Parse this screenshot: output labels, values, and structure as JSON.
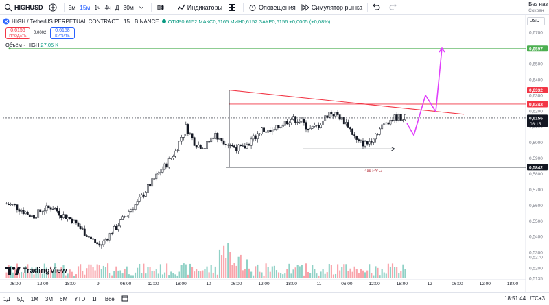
{
  "topbar": {
    "symbol": "HIGHUSD",
    "timeframes": [
      "5м",
      "15м",
      "1ч",
      "4ч",
      "Д",
      "30м"
    ],
    "active_timeframe": "15м",
    "indicators_label": "Индикаторы",
    "alerts_label": "Оповещения",
    "replay_label": "Симулятор рынка",
    "unnamed_label": "Без наз",
    "saved_label": "Сохран"
  },
  "legend": {
    "title": "HIGH / TetherUS PERPETUAL CONTRACT · 15 · BINANCE",
    "ohlc": "ОТКР0,6152 МАКС0,6165 МИН0,6152 ЗАКР0,6156 +0,0005 (+0,08%)"
  },
  "trade": {
    "sell_price": "0,6156",
    "sell_label": "ПРОДАТЬ",
    "spread": "0,0002",
    "buy_price": "0,6158",
    "buy_label": "КУПИТЬ"
  },
  "volume_legend": {
    "label": "Объём · HIGH",
    "value": "27,05 K"
  },
  "currency": "USDT",
  "icons": [
    "search-icon",
    "plus-icon",
    "candles-icon",
    "indicators-icon",
    "grid-icon",
    "alarm-icon",
    "replay-icon",
    "undo-icon",
    "redo-icon",
    "calendar-icon",
    "tradingview-logo-icon"
  ],
  "colors": {
    "up": "#089981",
    "down": "#f23645",
    "trendline": "#f23645",
    "projection": "#e040fb",
    "target_line": "#4caf50",
    "fvg_line": "#131722",
    "fvg_text": "#b22833"
  },
  "chart_data": {
    "type": "candlestick",
    "ylim": [
      0.5135,
      0.674
    ],
    "y_ticks": [
      "0,6700",
      "0,6600",
      "0,6500",
      "0,6400",
      "0,6300",
      "0,6200",
      "0,6100",
      "0,6000",
      "0,5900",
      "0,5800",
      "0,5700",
      "0,5600",
      "0,5500",
      "0,5400",
      "0,5300",
      "0,5270",
      "0,5200",
      "0,5135"
    ],
    "x_ticks": [
      "06:00",
      "12:00",
      "18:00",
      "9",
      "06:00",
      "12:00",
      "18:00",
      "10",
      "06:00",
      "12:00",
      "18:00",
      "11",
      "06:00",
      "12:00",
      "18:00",
      "12",
      "06:00",
      "12:00",
      "18:00"
    ],
    "price_path": [
      0.561,
      0.56,
      0.556,
      0.553,
      0.557,
      0.559,
      0.554,
      0.551,
      0.545,
      0.539,
      0.534,
      0.541,
      0.548,
      0.556,
      0.562,
      0.571,
      0.579,
      0.586,
      0.595,
      0.61,
      0.599,
      0.597,
      0.605,
      0.601,
      0.597,
      0.596,
      0.602,
      0.608,
      0.606,
      0.611,
      0.615,
      0.614,
      0.608,
      0.611,
      0.619,
      0.617,
      0.611,
      0.6,
      0.599,
      0.606,
      0.613,
      0.616,
      0.6156
    ],
    "price_path_x_ticks": [
      0,
      3.5
    ],
    "price_lines": [
      {
        "label": "0,6597",
        "value": 0.6597,
        "color": "#4caf50"
      },
      {
        "label": "0,6332",
        "value": 0.6332,
        "color": "#f23645"
      },
      {
        "label": "0,6243",
        "value": 0.6243,
        "color": "#f23645"
      },
      {
        "label": "0,6156",
        "value": 0.6156,
        "color": "#131722",
        "countdown": "08:15"
      },
      {
        "label": "0,5842",
        "value": 0.5842,
        "color": "#131722"
      }
    ],
    "annotations": [
      {
        "type": "text",
        "text": "4H FVG"
      }
    ]
  },
  "bottombar": {
    "ranges": [
      "1Д",
      "5Д",
      "1М",
      "3М",
      "6М",
      "YTD",
      "1Г",
      "Все"
    ],
    "time": "18:51:44 UTC+3"
  },
  "logo_text": "TradingView"
}
